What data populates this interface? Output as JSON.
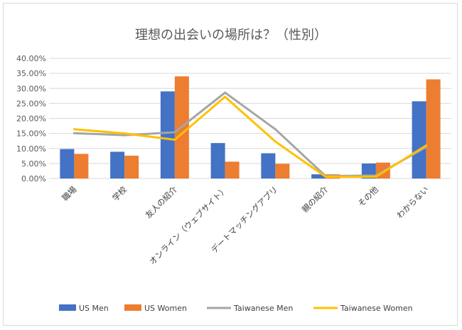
{
  "chart_data": {
    "type": "bar",
    "title": "理想の出会いの場所は？（性別）",
    "categories": [
      "職場",
      "学校",
      "友人の紹介",
      "オンライン（ウェブサイト）",
      "デートマッチングアプリ",
      "親の紹介",
      "その他",
      "わからない"
    ],
    "y_ticks": [
      "0.00%",
      "5.00%",
      "10.00%",
      "15.00%",
      "20.00%",
      "25.00%",
      "30.00%",
      "35.00%",
      "40.00%"
    ],
    "ylim": [
      0,
      40
    ],
    "grid": true,
    "legend_position": "bottom",
    "bar_series": [
      {
        "name": "US Men",
        "color": "#4472C4",
        "values": [
          9.8,
          8.9,
          29.0,
          11.8,
          8.4,
          1.4,
          5.0,
          25.7
        ]
      },
      {
        "name": "US Women",
        "color": "#ED7D31",
        "values": [
          8.2,
          7.6,
          34.0,
          5.6,
          4.9,
          1.4,
          5.3,
          33.0
        ]
      }
    ],
    "line_series": [
      {
        "name": "Taiwanese Men",
        "color": "#A5A5A5",
        "values": [
          15.1,
          14.4,
          15.4,
          28.6,
          16.4,
          0.8,
          1.0,
          10.5
        ]
      },
      {
        "name": "Taiwanese Women",
        "color": "#FFC000",
        "values": [
          16.4,
          15.0,
          12.9,
          27.2,
          12.3,
          0.6,
          0.6,
          11.0
        ]
      }
    ]
  }
}
